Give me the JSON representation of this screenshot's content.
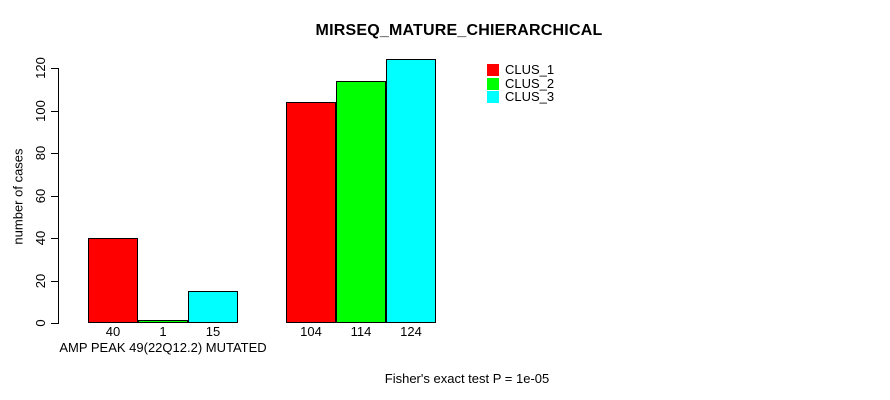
{
  "figure": {
    "background": "#FFFFFF",
    "text_color": "#000000",
    "axis_color": "#000000"
  },
  "chart_data": {
    "type": "bar",
    "title": "MIRSEQ_MATURE_CHIERARCHICAL",
    "ylabel": "number of cases",
    "xlabel": "",
    "categories": [
      "AMP PEAK 49(22Q12.2) MUTATED",
      ""
    ],
    "series": [
      {
        "name": "CLUS_1",
        "color": "#FF0000",
        "values": [
          40,
          104
        ]
      },
      {
        "name": "CLUS_2",
        "color": "#00FF00",
        "values": [
          1,
          114
        ]
      },
      {
        "name": "CLUS_3",
        "color": "#00FFFF",
        "values": [
          15,
          124
        ]
      }
    ],
    "bar_value_labels_shown": true,
    "yticks": [
      0,
      20,
      40,
      60,
      80,
      100,
      120
    ],
    "ylim": [
      0,
      120
    ],
    "grid": false,
    "legend": {
      "position": "top-right",
      "entries": [
        "CLUS_1",
        "CLUS_2",
        "CLUS_3"
      ]
    },
    "annotation": "Fisher's exact test P = 1e-05"
  }
}
